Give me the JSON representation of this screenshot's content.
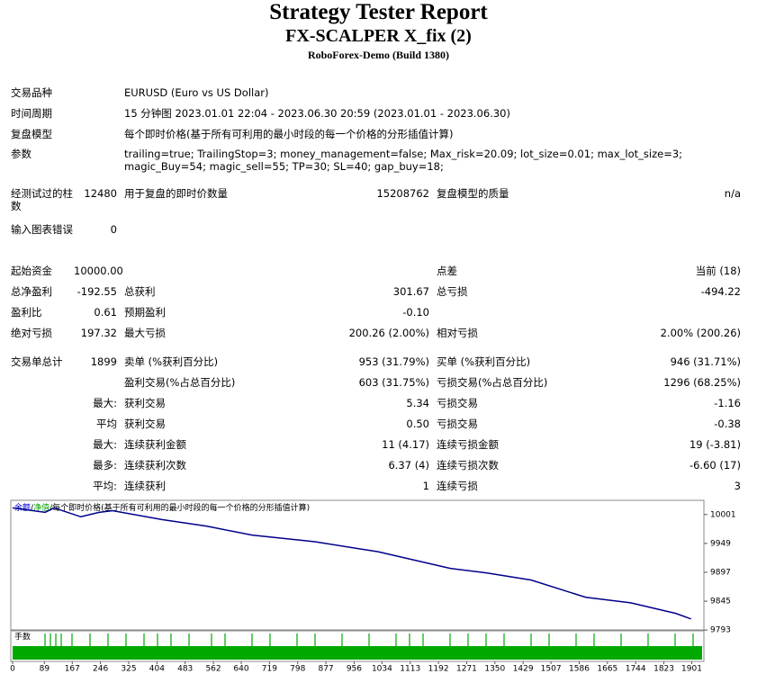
{
  "header": {
    "title": "Strategy Tester Report",
    "subtitle": "FX-SCALPER X_fix (2)",
    "server": "RoboForex-Demo (Build 1380)"
  },
  "info": [
    {
      "label": "交易品种",
      "value": "EURUSD (Euro vs US Dollar)"
    },
    {
      "label": "时间周期",
      "value": "15 分钟图 2023.01.01 22:04 - 2023.06.30 20:59 (2023.01.01 - 2023.06.30)"
    },
    {
      "label": "复盘模型",
      "value": "每个即时价格(基于所有可利用的最小时段的每一个价格的分形插值计算)"
    },
    {
      "label": "参数",
      "value": "trailing=true; TrailingStop=3; money_management=false; Max_risk=20.09; lot_size=0.01; max_lot_size=3; magic_Buy=54; magic_sell=55; TP=30; SL=40; gap_buy=18;"
    }
  ],
  "stats": [
    {
      "l1": "经测试过的柱数",
      "v1": "12480",
      "l2": "用于复盘的即时价数量",
      "v2": "15208762",
      "l3": "复盘模型的质量",
      "v3": "n/a"
    },
    {
      "l1": "输入图表错误",
      "v1": "0"
    },
    {
      "l1": "起始资金",
      "v1": "10000.00",
      "l3": "点差",
      "v3": "当前 (18)"
    },
    {
      "l1": "总净盈利",
      "v1": "-192.55",
      "l2": "总获利",
      "v2": "301.67",
      "l3": "总亏损",
      "v3": "-494.22"
    },
    {
      "l1": "盈利比",
      "v1": "0.61",
      "l2": "预期盈利",
      "v2": "-0.10"
    },
    {
      "l1": "绝对亏损",
      "v1": "197.32",
      "l2": "最大亏损",
      "v2": "200.26 (2.00%)",
      "l3": "相对亏损",
      "v3": "2.00% (200.26)"
    },
    {
      "l1": "交易单总计",
      "v1": "1899",
      "l2": "卖单 (%获利百分比)",
      "v2": "953 (31.79%)",
      "l3": "买单 (%获利百分比)",
      "v3": "946 (31.71%)"
    },
    {
      "l2": "盈利交易(%占总百分比)",
      "v2": "603 (31.75%)",
      "l3": "亏损交易(%占总百分比)",
      "v3": "1296 (68.25%)"
    },
    {
      "v1": "最大:",
      "l2": "获利交易",
      "v2": "5.34",
      "l3": "亏损交易",
      "v3": "-1.16"
    },
    {
      "v1": "平均",
      "l2": "获利交易",
      "v2": "0.50",
      "l3": "亏损交易",
      "v3": "-0.38"
    },
    {
      "v1": "最大:",
      "l2": "连续获利金额",
      "v2": "11 (4.17)",
      "l3": "连续亏损金额",
      "v3": "19 (-3.81)"
    },
    {
      "v1": "最多:",
      "l2": "连续获利次数",
      "v2": "6.37 (4)",
      "l3": "连续亏损次数",
      "v3": "-6.60 (17)"
    },
    {
      "v1": "平均:",
      "l2": "连续获利",
      "v2": "1",
      "l3": "连续亏损",
      "v3": "3"
    }
  ],
  "graph": {
    "legend": [
      "余额",
      "/",
      "净值",
      "/",
      "每个即时价格(基于所有可利用的最小时段的每一个价格的分形插值计算)"
    ],
    "lots_label": "手数",
    "color": "#00008b",
    "x": [
      0,
      91,
      116,
      191,
      242,
      280,
      418,
      544,
      670,
      846,
      1023,
      1225,
      1326,
      1452,
      1604,
      1730,
      1856,
      1899
    ],
    "values": [
      10013,
      10005,
      10013,
      9997,
      10005,
      10008,
      9992,
      9980,
      9964,
      9952,
      9934,
      9904,
      9896,
      9883,
      9852,
      9842,
      9823,
      9813
    ],
    "xlim": [
      0,
      1935
    ],
    "ylim": [
      9790,
      10025
    ],
    "yticks": [
      10001,
      9949,
      9897,
      9845,
      9793
    ],
    "xticks": [
      0,
      89,
      167,
      246,
      325,
      404,
      483,
      562,
      640,
      719,
      798,
      877,
      956,
      1034,
      1113,
      1192,
      1271,
      1350,
      1429,
      1507,
      1586,
      1665,
      1744,
      1823,
      1901
    ]
  }
}
